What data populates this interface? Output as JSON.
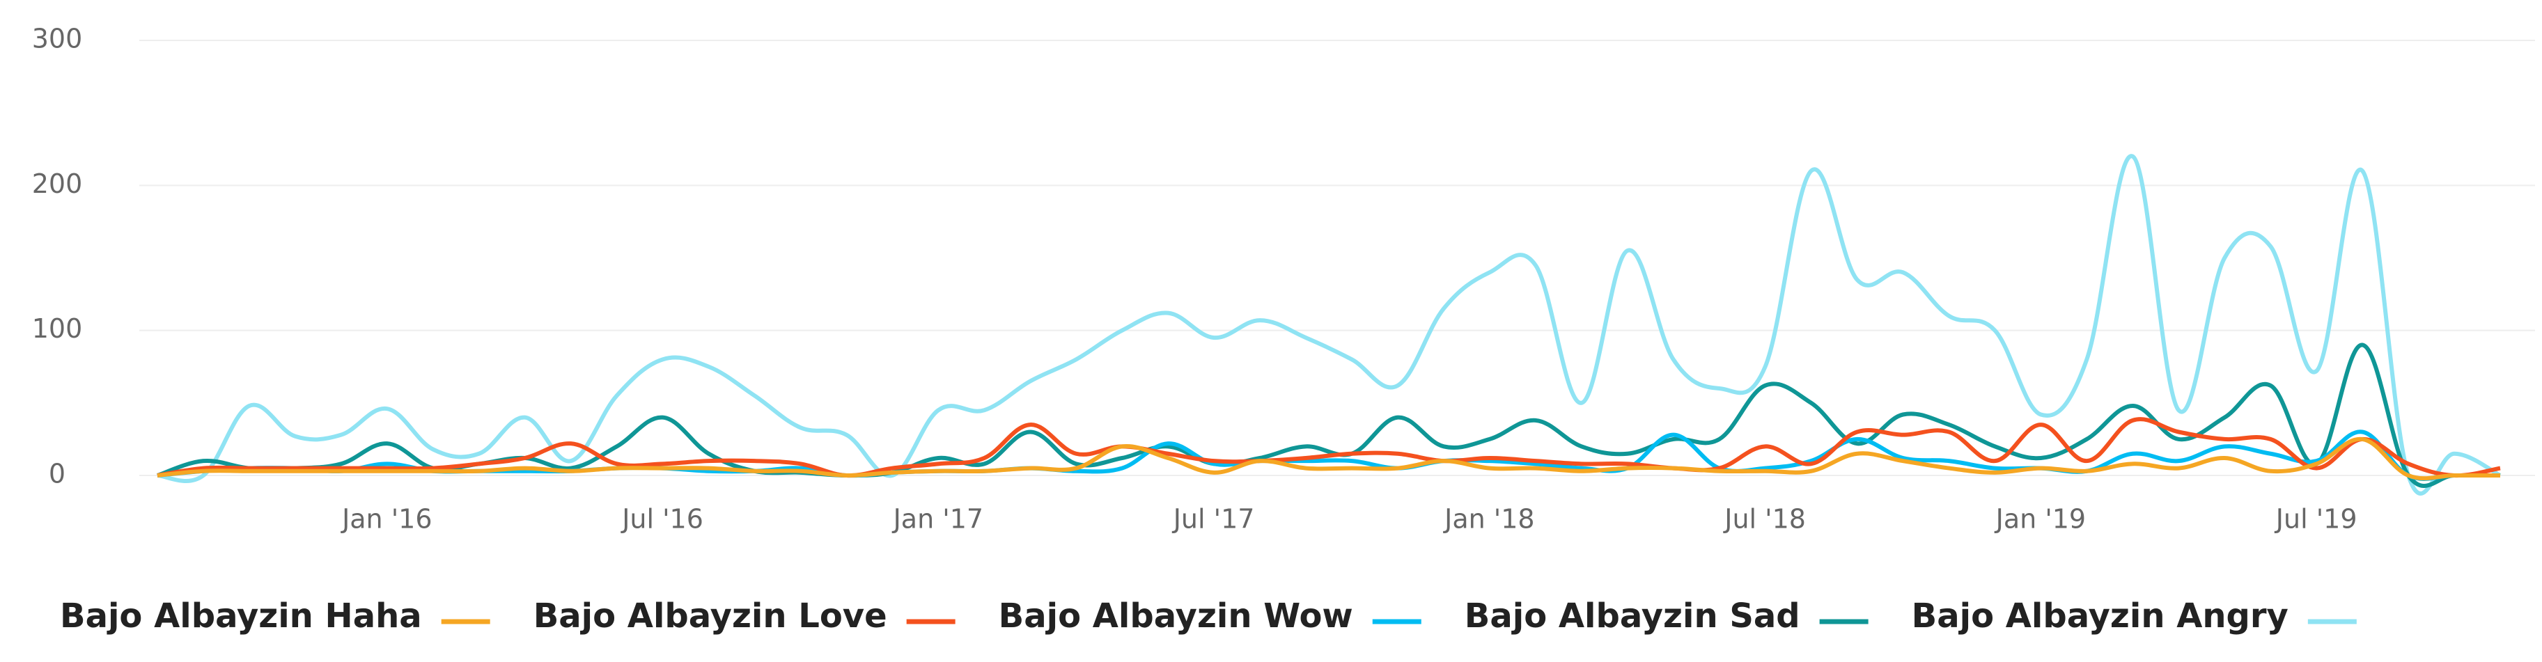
{
  "chart_data": {
    "type": "line",
    "x": [
      "2015-08",
      "2015-09",
      "2015-10",
      "2015-11",
      "2015-12",
      "2016-01",
      "2016-02",
      "2016-03",
      "2016-04",
      "2016-05",
      "2016-06",
      "2016-07",
      "2016-08",
      "2016-09",
      "2016-10",
      "2016-11",
      "2016-12",
      "2017-01",
      "2017-02",
      "2017-03",
      "2017-04",
      "2017-05",
      "2017-06",
      "2017-07",
      "2017-08",
      "2017-09",
      "2017-10",
      "2017-11",
      "2017-12",
      "2018-01",
      "2018-02",
      "2018-03",
      "2018-04",
      "2018-05",
      "2018-06",
      "2018-07",
      "2018-08",
      "2018-09",
      "2018-10",
      "2018-11",
      "2018-12",
      "2019-01",
      "2019-02",
      "2019-03",
      "2019-04",
      "2019-05",
      "2019-06",
      "2019-07",
      "2019-08",
      "2019-09",
      "2019-10",
      "2019-11"
    ],
    "xlim": [
      "2015-08",
      "2019-11"
    ],
    "xticks": [
      {
        "value": "2016-01",
        "label": "Jan '16"
      },
      {
        "value": "2016-07",
        "label": "Jul '16"
      },
      {
        "value": "2017-01",
        "label": "Jan '17"
      },
      {
        "value": "2017-07",
        "label": "Jul '17"
      },
      {
        "value": "2018-01",
        "label": "Jan '18"
      },
      {
        "value": "2018-07",
        "label": "Jul '18"
      },
      {
        "value": "2019-01",
        "label": "Jan '19"
      },
      {
        "value": "2019-07",
        "label": "Jul '19"
      }
    ],
    "ylim": [
      0,
      300
    ],
    "yticks": [
      0,
      100,
      200,
      300
    ],
    "grid": true,
    "legend": "bottom",
    "series": [
      {
        "name": "Bajo Albayzin Haha",
        "color": "#f5a623",
        "values": [
          0,
          3,
          3,
          3,
          3,
          3,
          3,
          3,
          5,
          3,
          5,
          5,
          5,
          3,
          3,
          0,
          2,
          3,
          3,
          5,
          5,
          20,
          12,
          2,
          10,
          5,
          5,
          5,
          10,
          5,
          5,
          3,
          5,
          5,
          3,
          3,
          3,
          15,
          10,
          5,
          2,
          5,
          3,
          8,
          5,
          12,
          3,
          8,
          25,
          0,
          0,
          0
        ]
      },
      {
        "name": "Bajo Albayzin Love",
        "color": "#f4511e",
        "values": [
          0,
          5,
          5,
          5,
          5,
          5,
          5,
          8,
          12,
          22,
          8,
          8,
          10,
          10,
          8,
          0,
          5,
          8,
          12,
          35,
          15,
          20,
          15,
          10,
          10,
          12,
          15,
          15,
          10,
          12,
          10,
          8,
          8,
          5,
          5,
          20,
          8,
          30,
          28,
          30,
          10,
          35,
          10,
          38,
          30,
          25,
          25,
          5,
          25,
          8,
          0,
          5
        ]
      },
      {
        "name": "Bajo Albayzin Wow",
        "color": "#00bcf2",
        "values": [
          0,
          3,
          5,
          5,
          3,
          8,
          3,
          3,
          3,
          3,
          5,
          5,
          3,
          3,
          5,
          0,
          2,
          3,
          3,
          5,
          3,
          5,
          22,
          8,
          10,
          10,
          10,
          5,
          10,
          10,
          8,
          5,
          5,
          28,
          5,
          5,
          10,
          25,
          12,
          10,
          5,
          5,
          3,
          15,
          10,
          20,
          15,
          10,
          30,
          0,
          0,
          0
        ]
      },
      {
        "name": "Bajo Albayzin Sad",
        "color": "#0f9696",
        "values": [
          0,
          10,
          5,
          5,
          8,
          22,
          5,
          8,
          12,
          5,
          20,
          40,
          15,
          3,
          2,
          0,
          2,
          12,
          8,
          30,
          8,
          12,
          20,
          8,
          12,
          20,
          15,
          40,
          20,
          25,
          38,
          20,
          15,
          25,
          25,
          62,
          50,
          22,
          42,
          35,
          20,
          12,
          25,
          48,
          25,
          40,
          62,
          8,
          90,
          0,
          0,
          0
        ]
      },
      {
        "name": "Bajo Albayzin Angry",
        "color": "#8fe3f3",
        "values": [
          0,
          0,
          48,
          27,
          28,
          46,
          18,
          15,
          40,
          10,
          55,
          80,
          75,
          55,
          33,
          28,
          0,
          45,
          45,
          65,
          80,
          100,
          112,
          95,
          107,
          95,
          80,
          62,
          115,
          140,
          145,
          50,
          155,
          80,
          60,
          75,
          210,
          135,
          140,
          110,
          100,
          42,
          80,
          220,
          45,
          150,
          158,
          72,
          210,
          0,
          15,
          0
        ]
      }
    ]
  }
}
